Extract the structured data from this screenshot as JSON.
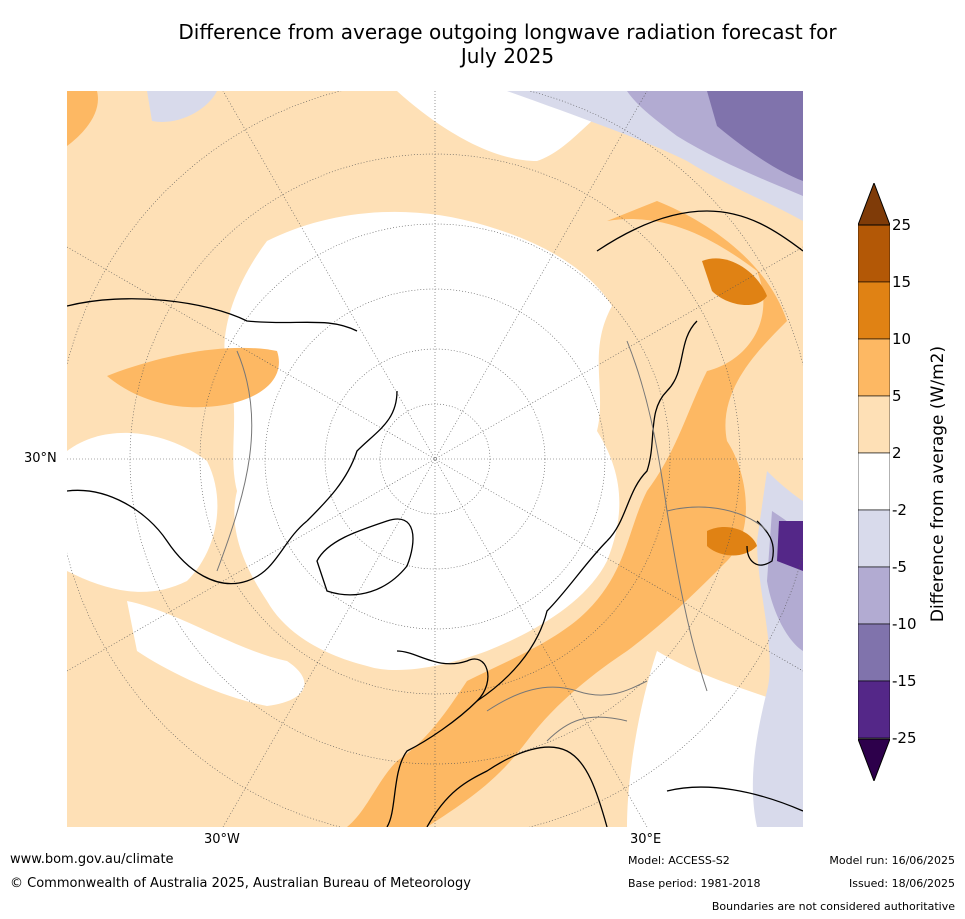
{
  "title_line1": "Difference from average outgoing longwave radiation forecast for",
  "title_line2": "July 2025",
  "axis_labels": {
    "lat_left": "30°N",
    "lon_bottom_left": "30°W",
    "lon_bottom_right": "30°E"
  },
  "colorbar": {
    "title": "Difference from average (W/m2)",
    "ticks": [
      "25",
      "15",
      "10",
      "5",
      "2",
      "-2",
      "-5",
      "-10",
      "-15",
      "-25"
    ],
    "colors": [
      "#7f3b08",
      "#b35806",
      "#e08214",
      "#fdb863",
      "#fee0b6",
      "#ffffff",
      "#d8daeb",
      "#b2abd2",
      "#8073ac",
      "#542788",
      "#2d004b"
    ]
  },
  "footer": {
    "website": "www.bom.gov.au/climate",
    "copyright": "© Commonwealth of Australia 2025, Australian Bureau of Meteorology",
    "model": "Model: ACCESS-S2",
    "base_period": "Base period: 1981-2018",
    "model_run": "Model run: 16/06/2025",
    "issued": "Issued: 18/06/2025",
    "disclaimer": "Boundaries are not considered authoritative"
  }
}
